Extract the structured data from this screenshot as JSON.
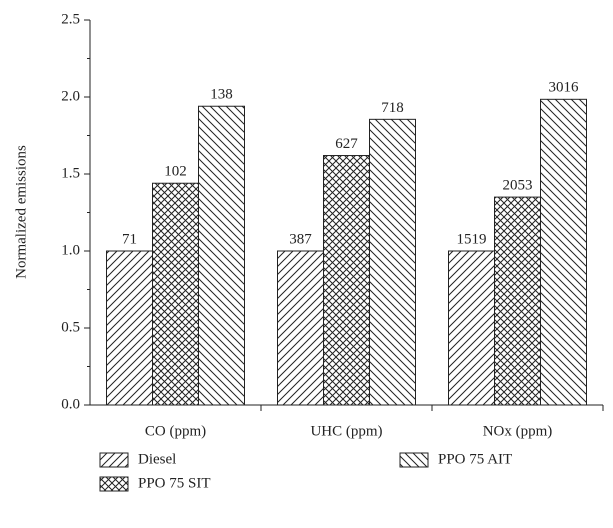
{
  "chart_data": {
    "type": "bar",
    "ylabel": "Normalized emissions",
    "categories": [
      "CO (ppm)",
      "UHC (ppm)",
      "NOx (ppm)"
    ],
    "series": [
      {
        "name": "Diesel",
        "pattern": "forward-hatch",
        "values": [
          1.0,
          1.0,
          1.0
        ],
        "labels": [
          "71",
          "387",
          "1519"
        ]
      },
      {
        "name": "PPO 75 SIT",
        "pattern": "cross-hatch",
        "values": [
          1.44,
          1.62,
          1.35
        ],
        "labels": [
          "102",
          "627",
          "2053"
        ]
      },
      {
        "name": "PPO 75 AIT",
        "pattern": "back-hatch",
        "values": [
          1.94,
          1.855,
          1.985
        ],
        "labels": [
          "138",
          "718",
          "3016"
        ]
      }
    ],
    "ylim": [
      0,
      2.5
    ],
    "yticks": [
      {
        "value": 0,
        "label": "0.0"
      },
      {
        "value": 0.5,
        "label": "0.5"
      },
      {
        "value": 1,
        "label": "1.0"
      },
      {
        "value": 1.5,
        "label": "1.5"
      },
      {
        "value": 2,
        "label": "2.0"
      },
      {
        "value": 2.5,
        "label": "2.5"
      }
    ]
  }
}
